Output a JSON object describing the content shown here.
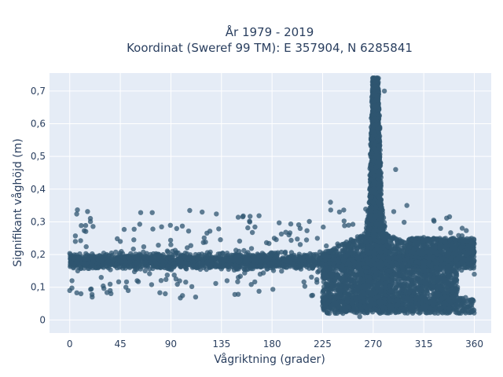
{
  "chart_data": {
    "type": "scatter",
    "title_line1": "År 1979 - 2019",
    "title_line2": "Koordinat (Sweref 99 TM): E 357904, N 6285841",
    "xlabel": "Vågriktning (grader)",
    "ylabel": "Signifikant våghöjd (m)",
    "xlim": [
      -18,
      375
    ],
    "ylim": [
      -0.04,
      0.755
    ],
    "xticks": [
      0,
      45,
      90,
      135,
      180,
      225,
      270,
      315,
      360
    ],
    "xtick_labels": [
      "0",
      "45",
      "90",
      "135",
      "180",
      "225",
      "270",
      "315",
      "360"
    ],
    "yticks": [
      0,
      0.1,
      0.2,
      0.3,
      0.4,
      0.5,
      0.6,
      0.7
    ],
    "ytick_labels": [
      "0",
      "0,1",
      "0,2",
      "0,3",
      "0,4",
      "0,5",
      "0,6",
      "0,7"
    ],
    "grid": true,
    "marker_color": "#2f5570",
    "background_color": "#e5ecf6",
    "x_range_data": [
      0,
      360
    ],
    "y_range_data": [
      0.01,
      0.74
    ],
    "dense_band": {
      "x": [
        0,
        360
      ],
      "y_center": 0.18,
      "y_spread": [
        0.14,
        0.23
      ]
    },
    "peak": {
      "x_center": 272,
      "x_range": [
        262,
        285
      ],
      "y_max": 0.74
    },
    "wide_cloud": {
      "x_range": [
        225,
        345
      ],
      "y_range": [
        0.01,
        0.28
      ]
    },
    "sample_points": [
      [
        0,
        0.09
      ],
      [
        2,
        0.12
      ],
      [
        5,
        0.24
      ],
      [
        10,
        0.08
      ],
      [
        20,
        0.07
      ],
      [
        28,
        0.13
      ],
      [
        45,
        0.24
      ],
      [
        50,
        0.1
      ],
      [
        52,
        0.09
      ],
      [
        60,
        0.12
      ],
      [
        85,
        0.08
      ],
      [
        90,
        0.23
      ],
      [
        140,
        0.12
      ],
      [
        150,
        0.13
      ],
      [
        182,
        0.25
      ],
      [
        195,
        0.26
      ],
      [
        205,
        0.28
      ],
      [
        225,
        0.07
      ],
      [
        232,
        0.36
      ],
      [
        240,
        0.33
      ],
      [
        258,
        0.01
      ],
      [
        270,
        0.74
      ],
      [
        280,
        0.7
      ],
      [
        290,
        0.46
      ],
      [
        300,
        0.35
      ],
      [
        318,
        0.15
      ],
      [
        330,
        0.28
      ],
      [
        345,
        0.1
      ],
      [
        350,
        0.05
      ],
      [
        360,
        0.14
      ]
    ]
  }
}
